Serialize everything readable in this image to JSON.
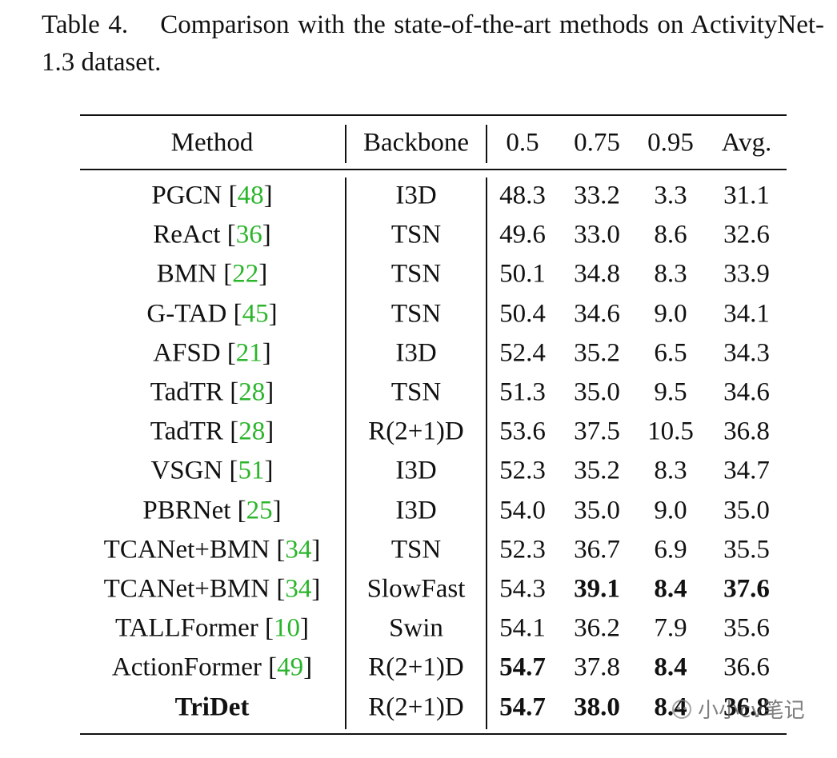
{
  "caption": {
    "label": "Table 4.",
    "text": "Comparison with the state-of-the-art methods on ActivityNet-1.3 dataset."
  },
  "table": {
    "header": [
      "Method",
      "Backbone",
      "0.5",
      "0.75",
      "0.95",
      "Avg."
    ],
    "rows": [
      [
        "PGCN [48]",
        "I3D",
        "48.3",
        "33.2",
        "3.3",
        "31.1"
      ],
      [
        "ReAct [36]",
        "TSN",
        "49.6",
        "33.0",
        "8.6",
        "32.6"
      ],
      [
        "BMN [22]",
        "TSN",
        "50.1",
        "34.8",
        "8.3",
        "33.9"
      ],
      [
        "G-TAD [45]",
        "TSN",
        "50.4",
        "34.6",
        "9.0",
        "34.1"
      ],
      [
        "AFSD [21]",
        "I3D",
        "52.4",
        "35.2",
        "6.5",
        "34.3"
      ],
      [
        "TadTR [28]",
        "TSN",
        "51.3",
        "35.0",
        "9.5",
        "34.6"
      ],
      [
        "TadTR [28]",
        "R(2+1)D",
        "53.6",
        "37.5",
        "10.5",
        "36.8"
      ],
      [
        "VSGN [51]",
        "I3D",
        "52.3",
        "35.2",
        "8.3",
        "34.7"
      ],
      [
        "PBRNet [25]",
        "I3D",
        "54.0",
        "35.0",
        "9.0",
        "35.0"
      ],
      [
        "TCANet+BMN [34]",
        "TSN",
        "52.3",
        "36.7",
        "6.9",
        "35.5"
      ],
      [
        "TCANet+BMN [34]",
        "SlowFast",
        "54.3",
        "39.1",
        "8.4",
        "37.6"
      ],
      [
        "TALLFormer [10]",
        "Swin",
        "54.1",
        "36.2",
        "7.9",
        "35.6"
      ],
      [
        "ActionFormer [49]",
        "R(2+1)D",
        "54.7",
        "37.8",
        "8.4",
        "36.6"
      ],
      [
        "TriDet",
        "R(2+1)D",
        "54.7",
        "38.0",
        "8.4",
        "36.8"
      ]
    ],
    "bold": [
      [],
      [],
      [],
      [],
      [],
      [],
      [],
      [],
      [],
      [],
      [
        3,
        4,
        5
      ],
      [],
      [
        2,
        4
      ],
      [
        0,
        2,
        3,
        4,
        5
      ]
    ]
  },
  "watermark": "小小cv笔记"
}
